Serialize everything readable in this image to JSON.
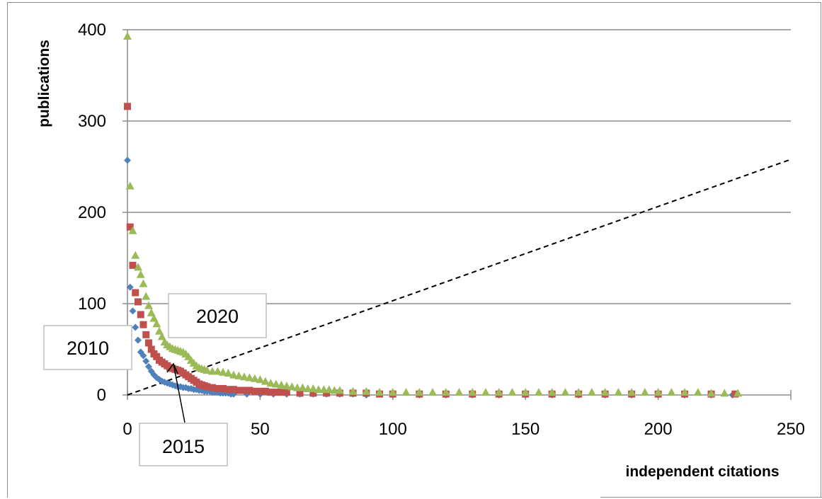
{
  "chart_data": {
    "type": "scatter",
    "xlabel": "independent citations",
    "ylabel": "publications",
    "xlim": [
      0,
      250
    ],
    "ylim": [
      0,
      400
    ],
    "x_ticks": [
      0,
      50,
      100,
      150,
      200,
      250
    ],
    "y_ticks": [
      0,
      100,
      200,
      300,
      400
    ],
    "x_tick_labels": [
      "0",
      "50",
      "100",
      "150",
      "200",
      "250"
    ],
    "y_tick_labels": [
      "0",
      "100",
      "200",
      "300",
      "400"
    ],
    "grid": "horizontal",
    "legend": "none",
    "series": [
      {
        "name": "2010",
        "marker": "diamond",
        "color": "#4f81bd",
        "points": [
          [
            0,
            257
          ],
          [
            1,
            118
          ],
          [
            2,
            92
          ],
          [
            3,
            74
          ],
          [
            4,
            60
          ],
          [
            5,
            47
          ],
          [
            6,
            43
          ],
          [
            7,
            37
          ],
          [
            8,
            31
          ],
          [
            9,
            26
          ],
          [
            10,
            22
          ],
          [
            11,
            19
          ],
          [
            12,
            17
          ],
          [
            13,
            15
          ],
          [
            14,
            14
          ],
          [
            15,
            13
          ],
          [
            16,
            12
          ],
          [
            17,
            11
          ],
          [
            18,
            10
          ],
          [
            19,
            9
          ],
          [
            20,
            9
          ],
          [
            21,
            8
          ],
          [
            22,
            8
          ],
          [
            23,
            7
          ],
          [
            24,
            7
          ],
          [
            25,
            6
          ],
          [
            26,
            6
          ],
          [
            27,
            5
          ],
          [
            28,
            5
          ],
          [
            29,
            4
          ],
          [
            30,
            4
          ],
          [
            31,
            4
          ],
          [
            32,
            3
          ],
          [
            33,
            3
          ],
          [
            34,
            3
          ],
          [
            35,
            2
          ],
          [
            36,
            2
          ],
          [
            37,
            2
          ],
          [
            38,
            2
          ],
          [
            39,
            1
          ],
          [
            40,
            1
          ],
          [
            45,
            1
          ],
          [
            50,
            1
          ],
          [
            55,
            1
          ],
          [
            60,
            1
          ],
          [
            65,
            1
          ],
          [
            70,
            1
          ],
          [
            75,
            1
          ],
          [
            80,
            1
          ],
          [
            85,
            1
          ],
          [
            90,
            0
          ],
          [
            100,
            0
          ],
          [
            110,
            0
          ],
          [
            120,
            0
          ],
          [
            130,
            0
          ],
          [
            140,
            0
          ],
          [
            150,
            0
          ],
          [
            160,
            0
          ],
          [
            170,
            0
          ],
          [
            180,
            0
          ],
          [
            190,
            0
          ],
          [
            200,
            0
          ],
          [
            210,
            0
          ],
          [
            220,
            0
          ],
          [
            228,
            0
          ]
        ]
      },
      {
        "name": "2015",
        "marker": "square",
        "color": "#c0504d",
        "points": [
          [
            0,
            316
          ],
          [
            1,
            184
          ],
          [
            2,
            142
          ],
          [
            3,
            112
          ],
          [
            4,
            102
          ],
          [
            5,
            88
          ],
          [
            6,
            77
          ],
          [
            7,
            66
          ],
          [
            8,
            57
          ],
          [
            9,
            50
          ],
          [
            10,
            45
          ],
          [
            11,
            42
          ],
          [
            12,
            38
          ],
          [
            13,
            36
          ],
          [
            14,
            34
          ],
          [
            15,
            32
          ],
          [
            16,
            30
          ],
          [
            17,
            29
          ],
          [
            18,
            28
          ],
          [
            19,
            27
          ],
          [
            20,
            26
          ],
          [
            21,
            24
          ],
          [
            22,
            22
          ],
          [
            23,
            20
          ],
          [
            24,
            18
          ],
          [
            25,
            16
          ],
          [
            26,
            14
          ],
          [
            27,
            12
          ],
          [
            28,
            11
          ],
          [
            29,
            10
          ],
          [
            30,
            9
          ],
          [
            32,
            8
          ],
          [
            34,
            7
          ],
          [
            36,
            7
          ],
          [
            38,
            6
          ],
          [
            40,
            6
          ],
          [
            42,
            5
          ],
          [
            44,
            5
          ],
          [
            46,
            5
          ],
          [
            48,
            4
          ],
          [
            50,
            4
          ],
          [
            52,
            4
          ],
          [
            54,
            3
          ],
          [
            56,
            3
          ],
          [
            58,
            3
          ],
          [
            60,
            3
          ],
          [
            65,
            2
          ],
          [
            70,
            2
          ],
          [
            75,
            2
          ],
          [
            80,
            2
          ],
          [
            85,
            2
          ],
          [
            90,
            2
          ],
          [
            95,
            1
          ],
          [
            100,
            1
          ],
          [
            110,
            1
          ],
          [
            120,
            1
          ],
          [
            130,
            1
          ],
          [
            140,
            1
          ],
          [
            150,
            1
          ],
          [
            160,
            1
          ],
          [
            170,
            1
          ],
          [
            180,
            1
          ],
          [
            190,
            1
          ],
          [
            200,
            1
          ],
          [
            210,
            1
          ],
          [
            220,
            1
          ],
          [
            229,
            1
          ]
        ]
      },
      {
        "name": "2020",
        "marker": "triangle",
        "color": "#9bbb59",
        "points": [
          [
            0,
            393
          ],
          [
            1,
            229
          ],
          [
            2,
            180
          ],
          [
            3,
            153
          ],
          [
            4,
            140
          ],
          [
            5,
            132
          ],
          [
            6,
            122
          ],
          [
            7,
            108
          ],
          [
            8,
            98
          ],
          [
            9,
            90
          ],
          [
            10,
            84
          ],
          [
            11,
            78
          ],
          [
            12,
            70
          ],
          [
            13,
            64
          ],
          [
            14,
            58
          ],
          [
            15,
            55
          ],
          [
            16,
            53
          ],
          [
            17,
            51
          ],
          [
            18,
            50
          ],
          [
            19,
            49
          ],
          [
            20,
            48
          ],
          [
            21,
            47
          ],
          [
            22,
            45
          ],
          [
            23,
            42
          ],
          [
            24,
            38
          ],
          [
            25,
            35
          ],
          [
            26,
            32
          ],
          [
            27,
            30
          ],
          [
            28,
            29
          ],
          [
            29,
            28
          ],
          [
            30,
            27
          ],
          [
            32,
            26
          ],
          [
            34,
            26
          ],
          [
            36,
            25
          ],
          [
            38,
            24
          ],
          [
            40,
            22
          ],
          [
            42,
            21
          ],
          [
            44,
            20
          ],
          [
            46,
            19
          ],
          [
            48,
            18
          ],
          [
            50,
            17
          ],
          [
            52,
            15
          ],
          [
            54,
            13
          ],
          [
            56,
            12
          ],
          [
            58,
            11
          ],
          [
            60,
            10
          ],
          [
            62,
            9
          ],
          [
            64,
            8
          ],
          [
            66,
            8
          ],
          [
            68,
            7
          ],
          [
            70,
            7
          ],
          [
            72,
            6
          ],
          [
            74,
            6
          ],
          [
            76,
            6
          ],
          [
            78,
            5
          ],
          [
            80,
            5
          ],
          [
            85,
            4
          ],
          [
            90,
            4
          ],
          [
            95,
            3
          ],
          [
            100,
            3
          ],
          [
            105,
            3
          ],
          [
            110,
            3
          ],
          [
            115,
            3
          ],
          [
            120,
            3
          ],
          [
            125,
            3
          ],
          [
            130,
            3
          ],
          [
            135,
            3
          ],
          [
            140,
            3
          ],
          [
            145,
            3
          ],
          [
            150,
            3
          ],
          [
            155,
            3
          ],
          [
            160,
            3
          ],
          [
            165,
            3
          ],
          [
            170,
            3
          ],
          [
            175,
            3
          ],
          [
            180,
            3
          ],
          [
            185,
            3
          ],
          [
            190,
            3
          ],
          [
            195,
            3
          ],
          [
            200,
            3
          ],
          [
            205,
            3
          ],
          [
            210,
            3
          ],
          [
            215,
            3
          ],
          [
            220,
            2
          ],
          [
            225,
            2
          ],
          [
            230,
            2
          ]
        ]
      }
    ],
    "reference_line": {
      "style": "dashed",
      "color": "#000000",
      "points": [
        [
          0,
          0
        ],
        [
          250,
          258
        ]
      ]
    },
    "annotations": [
      {
        "text": "2010",
        "points_to": "2010"
      },
      {
        "text": "2015",
        "points_to": "2015"
      },
      {
        "text": "2020",
        "points_to": "2020"
      }
    ]
  }
}
